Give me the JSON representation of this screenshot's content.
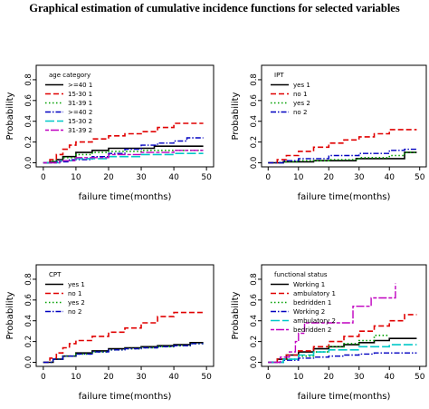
{
  "figure_title": "Graphical estimation of cumulative incidence functions for selected variables",
  "chart_data": [
    {
      "type": "line",
      "xlabel": "failure time(months)",
      "ylabel": "Probability",
      "xlim": [
        0,
        50
      ],
      "ylim": [
        0,
        0.9
      ],
      "xticks": [
        "0",
        "10",
        "20",
        "30",
        "40",
        "50"
      ],
      "yticks": [
        "0.0",
        "0.2",
        "0.4",
        "0.6",
        "0.8"
      ],
      "legend_title": "age category",
      "legend_position": "top-left",
      "series": [
        {
          "name": ">=40 1",
          "color": "#000000",
          "dash": "solid",
          "width": 1.6,
          "x": [
            0,
            2,
            4,
            6,
            10,
            15,
            20,
            34,
            49
          ],
          "y": [
            0,
            0.01,
            0.03,
            0.06,
            0.1,
            0.12,
            0.14,
            0.16,
            0.16
          ]
        },
        {
          "name": "15-30 1",
          "color": "#e00000",
          "dash": "dashed",
          "width": 1.6,
          "x": [
            0,
            2,
            4,
            6,
            8,
            10,
            15,
            20,
            25,
            30,
            35,
            40,
            49
          ],
          "y": [
            0,
            0.03,
            0.08,
            0.13,
            0.17,
            0.2,
            0.23,
            0.26,
            0.28,
            0.3,
            0.34,
            0.38,
            0.38
          ]
        },
        {
          "name": "31-39 1",
          "color": "#00a000",
          "dash": "dotted",
          "width": 1.6,
          "x": [
            0,
            3,
            6,
            10,
            15,
            20,
            30,
            40,
            49
          ],
          "y": [
            0,
            0.02,
            0.05,
            0.08,
            0.1,
            0.11,
            0.12,
            0.12,
            0.12
          ]
        },
        {
          "name": ">=40 2",
          "color": "#0000c0",
          "dash": "dashdot",
          "width": 1.4,
          "x": [
            0,
            4,
            8,
            15,
            20,
            25,
            30,
            35,
            40,
            44,
            49
          ],
          "y": [
            0,
            0.01,
            0.03,
            0.06,
            0.09,
            0.13,
            0.17,
            0.19,
            0.21,
            0.24,
            0.24
          ]
        },
        {
          "name": "15-30 2",
          "color": "#00c8c8",
          "dash": "longdash",
          "width": 1.6,
          "x": [
            0,
            5,
            10,
            20,
            30,
            40,
            49
          ],
          "y": [
            0,
            0.02,
            0.04,
            0.06,
            0.08,
            0.09,
            0.09
          ]
        },
        {
          "name": "31-39 2",
          "color": "#c000c0",
          "dash": "twodash",
          "width": 1.4,
          "x": [
            0,
            5,
            10,
            20,
            30,
            40,
            49
          ],
          "y": [
            0,
            0.02,
            0.05,
            0.08,
            0.1,
            0.12,
            0.12
          ]
        }
      ]
    },
    {
      "type": "line",
      "xlabel": "failure time(months)",
      "ylabel": "Probability",
      "xlim": [
        0,
        50
      ],
      "ylim": [
        0,
        0.9
      ],
      "xticks": [
        "0",
        "10",
        "20",
        "30",
        "40",
        "50"
      ],
      "yticks": [
        "0.0",
        "0.2",
        "0.4",
        "0.6",
        "0.8"
      ],
      "legend_title": "IPT",
      "legend_position": "top-left",
      "series": [
        {
          "name": "yes 1",
          "color": "#000000",
          "dash": "solid",
          "width": 1.6,
          "x": [
            0,
            5,
            15,
            25,
            29,
            35,
            40,
            45,
            49
          ],
          "y": [
            0,
            0.01,
            0.02,
            0.02,
            0.04,
            0.04,
            0.04,
            0.1,
            0.1
          ]
        },
        {
          "name": "no 1",
          "color": "#e00000",
          "dash": "dashed",
          "width": 1.6,
          "x": [
            0,
            3,
            6,
            10,
            15,
            20,
            25,
            30,
            35,
            40,
            49
          ],
          "y": [
            0,
            0.03,
            0.07,
            0.11,
            0.15,
            0.19,
            0.22,
            0.25,
            0.28,
            0.32,
            0.32
          ]
        },
        {
          "name": "yes 2",
          "color": "#00a000",
          "dash": "dotted",
          "width": 1.6,
          "x": [
            0,
            5,
            10,
            20,
            30,
            40,
            45,
            49
          ],
          "y": [
            0,
            0.01,
            0.02,
            0.03,
            0.05,
            0.07,
            0.1,
            0.1
          ]
        },
        {
          "name": "no 2",
          "color": "#0000c0",
          "dash": "dashdot",
          "width": 1.4,
          "x": [
            0,
            5,
            10,
            20,
            30,
            40,
            45,
            49
          ],
          "y": [
            0,
            0.02,
            0.04,
            0.07,
            0.09,
            0.12,
            0.13,
            0.14
          ]
        }
      ]
    },
    {
      "type": "line",
      "xlabel": "failure time(months)",
      "ylabel": "Probability",
      "xlim": [
        0,
        50
      ],
      "ylim": [
        0,
        0.9
      ],
      "xticks": [
        "0",
        "10",
        "20",
        "30",
        "40",
        "50"
      ],
      "yticks": [
        "0.0",
        "0.2",
        "0.4",
        "0.6",
        "0.8"
      ],
      "legend_title": "CPT",
      "legend_position": "top-left",
      "series": [
        {
          "name": "yes 1",
          "color": "#000000",
          "dash": "solid",
          "width": 1.6,
          "x": [
            0,
            3,
            6,
            10,
            15,
            20,
            25,
            30,
            35,
            40,
            45,
            49
          ],
          "y": [
            0,
            0.03,
            0.06,
            0.09,
            0.11,
            0.13,
            0.14,
            0.15,
            0.16,
            0.17,
            0.19,
            0.19
          ]
        },
        {
          "name": "no 1",
          "color": "#e00000",
          "dash": "dashed",
          "width": 1.6,
          "x": [
            0,
            2,
            4,
            6,
            8,
            10,
            15,
            20,
            25,
            30,
            35,
            40,
            49
          ],
          "y": [
            0,
            0.04,
            0.09,
            0.14,
            0.18,
            0.21,
            0.25,
            0.29,
            0.33,
            0.38,
            0.44,
            0.48,
            0.48
          ]
        },
        {
          "name": "yes 2",
          "color": "#00a000",
          "dash": "dotted",
          "width": 1.6,
          "x": [
            0,
            3,
            6,
            10,
            15,
            20,
            25,
            30,
            35,
            40,
            45,
            49
          ],
          "y": [
            0,
            0.03,
            0.06,
            0.08,
            0.1,
            0.12,
            0.13,
            0.14,
            0.15,
            0.16,
            0.18,
            0.18
          ]
        },
        {
          "name": "no 2",
          "color": "#0000c0",
          "dash": "dashdot",
          "width": 1.4,
          "x": [
            0,
            3,
            6,
            10,
            15,
            20,
            25,
            30,
            35,
            40,
            45,
            49
          ],
          "y": [
            0,
            0.03,
            0.06,
            0.08,
            0.1,
            0.12,
            0.13,
            0.14,
            0.15,
            0.16,
            0.18,
            0.18
          ]
        }
      ]
    },
    {
      "type": "line",
      "xlabel": "failure time(months)",
      "ylabel": "Probability",
      "xlim": [
        0,
        50
      ],
      "ylim": [
        0,
        0.9
      ],
      "xticks": [
        "0",
        "10",
        "20",
        "30",
        "40",
        "50"
      ],
      "yticks": [
        "0.0",
        "0.2",
        "0.4",
        "0.6",
        "0.8"
      ],
      "legend_title": "functional status",
      "legend_position": "top-left",
      "series": [
        {
          "name": "Working 1",
          "color": "#000000",
          "dash": "solid",
          "width": 1.6,
          "x": [
            0,
            3,
            6,
            10,
            15,
            20,
            25,
            30,
            35,
            40,
            49
          ],
          "y": [
            0,
            0.03,
            0.07,
            0.1,
            0.13,
            0.15,
            0.17,
            0.19,
            0.21,
            0.23,
            0.23
          ]
        },
        {
          "name": "ambulatory 1",
          "color": "#e00000",
          "dash": "dashed",
          "width": 1.6,
          "x": [
            0,
            3,
            6,
            10,
            15,
            20,
            25,
            30,
            35,
            40,
            45,
            49
          ],
          "y": [
            0,
            0.03,
            0.07,
            0.11,
            0.15,
            0.2,
            0.25,
            0.3,
            0.35,
            0.4,
            0.46,
            0.46
          ]
        },
        {
          "name": "bedridden 1",
          "color": "#00a000",
          "dash": "dotted",
          "width": 1.6,
          "x": [
            0,
            5,
            10,
            15,
            20,
            25,
            30,
            35,
            40
          ],
          "y": [
            0,
            0.03,
            0.06,
            0.1,
            0.15,
            0.18,
            0.21,
            0.26,
            0.26
          ]
        },
        {
          "name": "Working 2",
          "color": "#0000c0",
          "dash": "dashdot",
          "width": 1.4,
          "x": [
            0,
            5,
            10,
            15,
            20,
            25,
            30,
            35,
            40,
            49
          ],
          "y": [
            0,
            0.02,
            0.04,
            0.05,
            0.06,
            0.07,
            0.08,
            0.09,
            0.09,
            0.09
          ]
        },
        {
          "name": "ambulatory 2",
          "color": "#00c8c8",
          "dash": "longdash",
          "width": 1.6,
          "x": [
            0,
            5,
            10,
            15,
            20,
            30,
            40,
            49
          ],
          "y": [
            0,
            0.03,
            0.07,
            0.1,
            0.12,
            0.15,
            0.17,
            0.17
          ]
        },
        {
          "name": "bedridden 2",
          "color": "#c000c0",
          "dash": "twodash",
          "width": 1.4,
          "x": [
            0,
            4,
            7,
            9,
            10,
            12,
            20,
            27,
            28,
            33,
            34,
            42
          ],
          "y": [
            0,
            0.05,
            0.1,
            0.2,
            0.28,
            0.38,
            0.38,
            0.38,
            0.54,
            0.54,
            0.62,
            0.76
          ]
        }
      ]
    }
  ]
}
